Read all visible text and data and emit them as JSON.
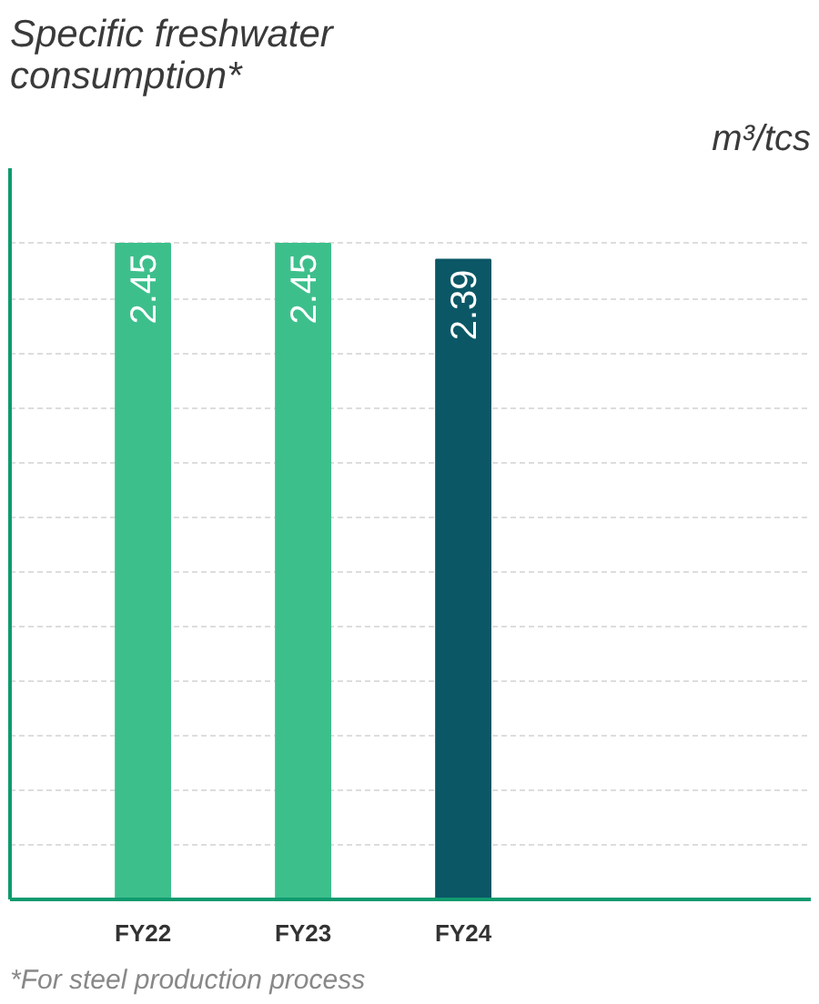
{
  "chart_data": {
    "type": "bar",
    "title": "Specific freshwater consumption*",
    "categories": [
      "FY22",
      "FY23",
      "FY24"
    ],
    "values": [
      2.45,
      2.45,
      2.39
    ],
    "colors": [
      "#3dbf8c",
      "#3dbf8c",
      "#0b5766"
    ],
    "data_labels": true,
    "grid": "y",
    "annotations": [
      "m³/tcs",
      "*For steel production process"
    ]
  }
}
